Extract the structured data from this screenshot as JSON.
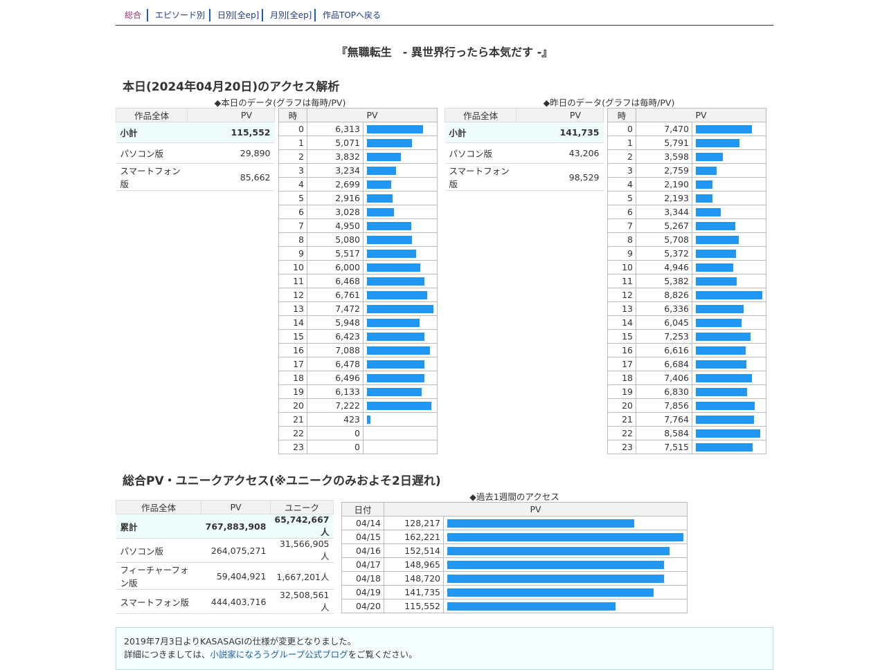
{
  "nav": {
    "items": [
      "総合",
      "エピソード別",
      "日別[全ep]",
      "月別[全ep]",
      "作品TOPへ戻る"
    ]
  },
  "title": "『無職転生　- 異世界行ったら本気だす -』",
  "today": {
    "heading": "本日(2024年04月20日)のアクセス解析",
    "caption_today": "◆本日のデータ(グラフは毎時/PV)",
    "caption_yesterday": "◆昨日のデータ(グラフは毎時/PV)",
    "summary_headers": [
      "作品全体",
      "PV"
    ],
    "hourly_headers": [
      "時",
      "PV"
    ],
    "today_summary": [
      {
        "label": "小計",
        "pv": "115,552"
      },
      {
        "label": "パソコン版",
        "pv": "29,890"
      },
      {
        "label": "スマートフォン版",
        "pv": "85,662"
      }
    ],
    "yesterday_summary": [
      {
        "label": "小計",
        "pv": "141,735"
      },
      {
        "label": "パソコン版",
        "pv": "43,206"
      },
      {
        "label": "スマートフォン版",
        "pv": "98,529"
      }
    ],
    "today_hourly": [
      "6,313",
      "5,071",
      "3,832",
      "3,234",
      "2,699",
      "2,916",
      "3,028",
      "4,950",
      "5,080",
      "5,517",
      "6,000",
      "6,468",
      "6,761",
      "7,472",
      "5,948",
      "6,423",
      "7,088",
      "6,478",
      "6,496",
      "6,133",
      "7,222",
      "423",
      "0",
      "0"
    ],
    "yesterday_hourly": [
      "7,470",
      "5,791",
      "3,598",
      "2,759",
      "2,190",
      "2,193",
      "3,344",
      "5,267",
      "5,708",
      "5,372",
      "4,946",
      "5,382",
      "8,826",
      "6,336",
      "6,045",
      "7,253",
      "6,616",
      "6,684",
      "7,406",
      "6,830",
      "7,856",
      "7,764",
      "8,584",
      "7,515"
    ],
    "bar_color": "#2196f3"
  },
  "total": {
    "heading": "総合PV・ユニークアクセス(※ユニークのみおよそ2日遅れ)",
    "summary_headers": [
      "作品全体",
      "PV",
      "ユニーク"
    ],
    "summary": [
      {
        "label": "累計",
        "pv": "767,883,908",
        "unique": "65,742,667人"
      },
      {
        "label": "パソコン版",
        "pv": "264,075,271",
        "unique": "31,566,905人"
      },
      {
        "label": "フィーチャーフォン版",
        "pv": "59,404,921",
        "unique": "1,667,201人"
      },
      {
        "label": "スマートフォン版",
        "pv": "444,403,716",
        "unique": "32,508,561人"
      }
    ],
    "week_caption": "◆過去1週間のアクセス",
    "week_headers": [
      "日付",
      "PV"
    ],
    "week": [
      {
        "date": "04/14",
        "pv": "128,217"
      },
      {
        "date": "04/15",
        "pv": "162,221"
      },
      {
        "date": "04/16",
        "pv": "152,514"
      },
      {
        "date": "04/17",
        "pv": "148,965"
      },
      {
        "date": "04/18",
        "pv": "148,720"
      },
      {
        "date": "04/19",
        "pv": "141,735"
      },
      {
        "date": "04/20",
        "pv": "115,552"
      }
    ]
  },
  "notice": {
    "line1": "2019年7月3日よりKASASAGIの仕様が変更となりました。",
    "line2_pre": "詳細につきましては、",
    "line2_link": "小説家になろうグループ公式ブログ",
    "line2_post": "をご覧ください。"
  }
}
